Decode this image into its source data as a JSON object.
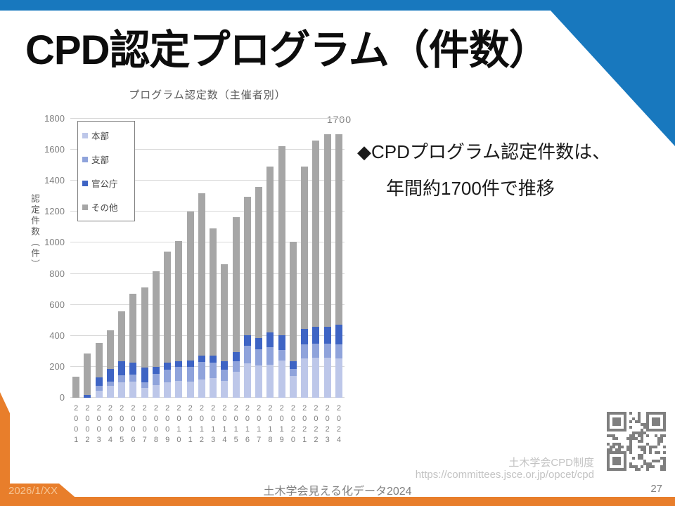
{
  "slide": {
    "title": "CPD認定プログラム（件数）",
    "bullet_line1": "◆CPDプログラム認定件数は、",
    "bullet_line2": "年間約1700件で推移",
    "footer": {
      "date": "2026/1/XX",
      "center_text": "土木学会見える化データ2024",
      "page_number": "27",
      "credit_line1": "土木学会CPD制度",
      "credit_line2": "https://committees.jsce.or.jp/opcet/cpd"
    }
  },
  "colors": {
    "accent_blue": "#1878be",
    "accent_orange": "#e87e2b",
    "gridline": "#d9d9d9",
    "axis_text": "#7f7f7f",
    "qr_gray": "#7f7f7f"
  },
  "chart_data": {
    "type": "bar",
    "stacked": true,
    "title": "プログラム認定数（主催者別）",
    "ylabel": "認定件数（件）",
    "xlabel": "",
    "ylim": [
      0,
      1800
    ],
    "ytick_step": 200,
    "grid": true,
    "legend_position": "upper left",
    "annotation": "1700",
    "categories": [
      "2001",
      "2002",
      "2003",
      "2004",
      "2005",
      "2006",
      "2007",
      "2008",
      "2009",
      "2010",
      "2011",
      "2012",
      "2013",
      "2014",
      "2015",
      "2016",
      "2017",
      "2018",
      "2019",
      "2020",
      "2021",
      "2022",
      "2023",
      "2024"
    ],
    "series": [
      {
        "name": "本部",
        "color": "#bdc7e9",
        "values": [
          0,
          0,
          45,
          75,
          100,
          105,
          65,
          80,
          100,
          110,
          105,
          120,
          125,
          110,
          170,
          220,
          210,
          215,
          240,
          140,
          255,
          260,
          260,
          255
        ]
      },
      {
        "name": "支部",
        "color": "#8fa3db",
        "values": [
          0,
          0,
          30,
          30,
          45,
          45,
          35,
          75,
          80,
          90,
          95,
          110,
          100,
          70,
          65,
          115,
          105,
          110,
          70,
          45,
          90,
          90,
          90,
          90
        ]
      },
      {
        "name": "官公庁",
        "color": "#3e64c4",
        "values": [
          0,
          20,
          55,
          80,
          90,
          75,
          95,
          45,
          45,
          35,
          40,
          40,
          45,
          55,
          60,
          70,
          70,
          95,
          95,
          50,
          100,
          110,
          110,
          125
        ]
      },
      {
        "name": "その他",
        "color": "#a6a6a6",
        "values": [
          135,
          265,
          225,
          250,
          325,
          445,
          515,
          615,
          720,
          775,
          960,
          1050,
          825,
          625,
          870,
          890,
          975,
          1070,
          1220,
          770,
          1045,
          1200,
          1240,
          1230
        ]
      }
    ],
    "totals": [
      135,
      285,
      355,
      435,
      560,
      670,
      710,
      815,
      945,
      1010,
      1200,
      1320,
      1095,
      860,
      1165,
      1295,
      1360,
      1490,
      1625,
      1005,
      1490,
      1660,
      1700,
      1700
    ]
  }
}
